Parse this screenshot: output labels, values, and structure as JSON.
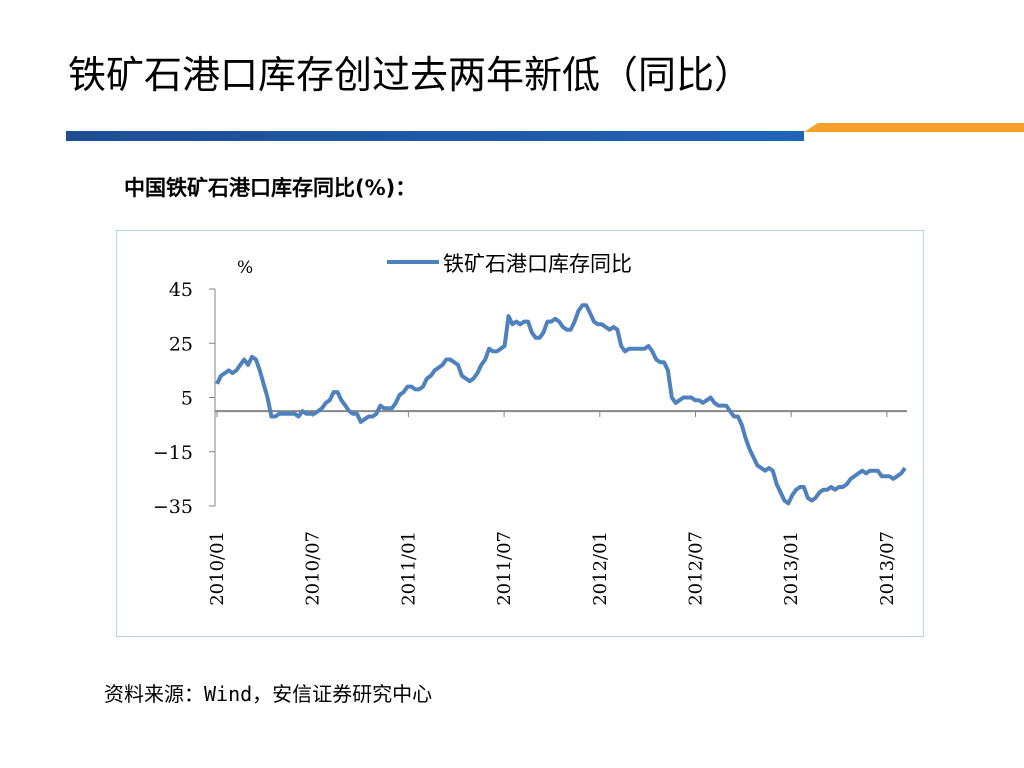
{
  "slide": {
    "title": "铁矿石港口库存创过去两年新低（同比）",
    "subtitle": "中国铁矿石港口库存同比(%)：",
    "source": "资料来源：Wind，安信证券研究中心"
  },
  "colors": {
    "primary_bar": "#1f5aa8",
    "accent_bar": "#f7a12c",
    "series": "#4f81bd",
    "frame": "#b7d3e2"
  },
  "chart_data": {
    "type": "line",
    "title": "",
    "xlabel": "",
    "ylabel": "%",
    "ylim": [
      -35,
      45
    ],
    "yticks": [
      45,
      25,
      5,
      -15,
      -35
    ],
    "xtick_labels": [
      "2010/01",
      "2010/07",
      "2011/01",
      "2011/07",
      "2012/01",
      "2012/07",
      "2013/01",
      "2013/07"
    ],
    "legend": {
      "position": "top-center"
    },
    "grid": false,
    "series": [
      {
        "name": "铁矿石港口库存同比",
        "x_start": "2010/01",
        "x_step": "week",
        "values": [
          10,
          13,
          14,
          15,
          14,
          15,
          17,
          19,
          17,
          20,
          19,
          15,
          10,
          5,
          -2,
          -2,
          -1,
          -1,
          -1,
          -1,
          -1,
          -2,
          0,
          -1,
          -1,
          -1,
          0,
          1,
          3,
          4,
          7,
          7,
          4,
          2,
          0,
          -1,
          -1,
          -4,
          -3,
          -2,
          -2,
          -1,
          2,
          1,
          1,
          1,
          3,
          6,
          7,
          9,
          9,
          8,
          8,
          9,
          12,
          13,
          15,
          16,
          17,
          19,
          19,
          18,
          17,
          13,
          12,
          11,
          12,
          14,
          17,
          19,
          23,
          22,
          22,
          23,
          24,
          35,
          32,
          33,
          32,
          33,
          33,
          29,
          27,
          27,
          29,
          33,
          33,
          34,
          33,
          31,
          30,
          30,
          33,
          37,
          39,
          39,
          36,
          33,
          32,
          32,
          31,
          30,
          31,
          30,
          24,
          22,
          23,
          23,
          23,
          23,
          23,
          24,
          22,
          19,
          18,
          18,
          15,
          5,
          3,
          4,
          5,
          5,
          5,
          4,
          4,
          3,
          4,
          5,
          3,
          2,
          2,
          2,
          0,
          -2,
          -2,
          -5,
          -10,
          -14,
          -17,
          -20,
          -21,
          -22,
          -21,
          -22,
          -27,
          -30,
          -33,
          -34,
          -31,
          -29,
          -28,
          -28,
          -32,
          -33,
          -32,
          -30,
          -29,
          -29,
          -28,
          -29,
          -28,
          -28,
          -27,
          -25,
          -24,
          -23,
          -22,
          -23,
          -22,
          -22,
          -22,
          -24,
          -24,
          -24,
          -25,
          -24,
          -23,
          -21
        ]
      }
    ]
  }
}
